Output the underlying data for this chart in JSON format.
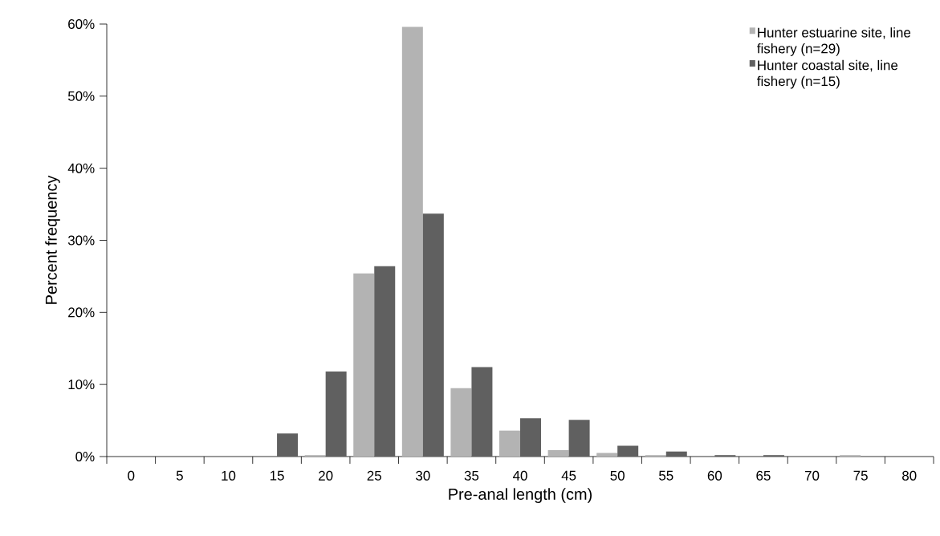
{
  "chart_data": {
    "type": "bar",
    "xlabel": "Pre-anal length (cm)",
    "ylabel": "Percent frequency",
    "categories": [
      "0",
      "5",
      "10",
      "15",
      "20",
      "25",
      "30",
      "35",
      "40",
      "45",
      "50",
      "55",
      "60",
      "65",
      "70",
      "75",
      "80"
    ],
    "series": [
      {
        "name": "Hunter estuarine site, line fishery (n=29)",
        "color": "#b3b3b3",
        "values": [
          0,
          0,
          0,
          0,
          0.2,
          25.4,
          59.6,
          9.5,
          3.6,
          0.9,
          0.5,
          0.2,
          0,
          0,
          0,
          0.2,
          0
        ]
      },
      {
        "name": "Hunter coastal site, line fishery (n=15)",
        "color": "#606060",
        "values": [
          0,
          0,
          0,
          3.2,
          11.8,
          26.4,
          33.7,
          12.4,
          5.3,
          5.1,
          1.5,
          0.7,
          0.2,
          0.2,
          0,
          0,
          0
        ]
      }
    ],
    "ylim": [
      0,
      60
    ],
    "yticks": [
      {
        "value": 0,
        "label": "0%"
      },
      {
        "value": 10,
        "label": "10%"
      },
      {
        "value": 20,
        "label": "20%"
      },
      {
        "value": 30,
        "label": "30%"
      },
      {
        "value": 40,
        "label": "40%"
      },
      {
        "value": 50,
        "label": "50%"
      },
      {
        "value": 60,
        "label": "60%"
      }
    ],
    "grid": false,
    "legend": "top right"
  }
}
